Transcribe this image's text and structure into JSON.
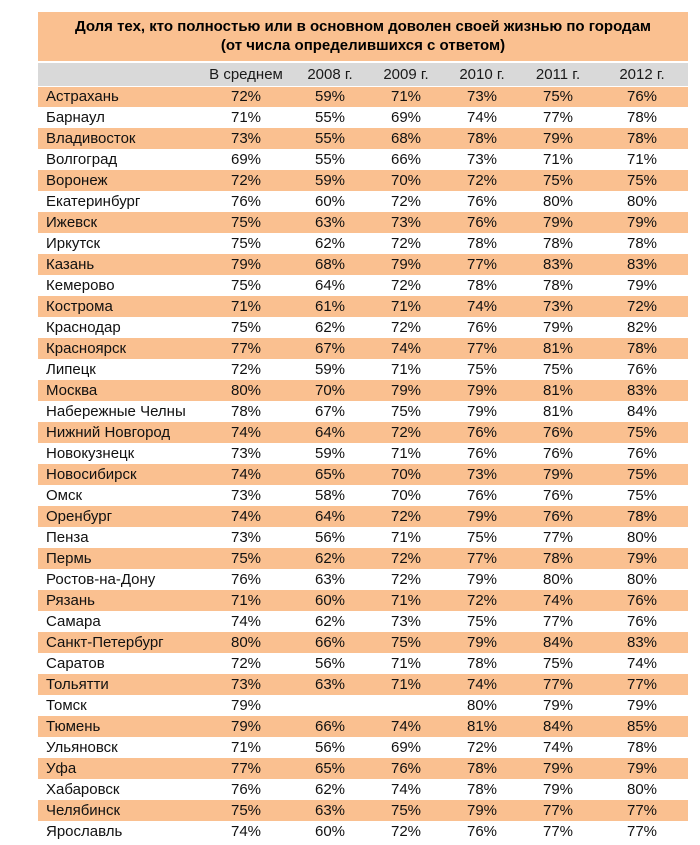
{
  "colors": {
    "accent_orange": "#FAC090",
    "header_gray": "#D9D9D9",
    "text": "#111111"
  },
  "chart_data": {
    "type": "table",
    "title": "Доля тех, кто полностью или в основном доволен своей жизнью по городам",
    "subtitle": "(от числа определившихся с ответом)",
    "columns": [
      "В среднем",
      "2008 г.",
      "2009 г.",
      "2010 г.",
      "2011 г.",
      "2012 г."
    ],
    "rows": [
      {
        "city": "Астрахань",
        "values": [
          "72%",
          "59%",
          "71%",
          "73%",
          "75%",
          "76%"
        ]
      },
      {
        "city": "Барнаул",
        "values": [
          "71%",
          "55%",
          "69%",
          "74%",
          "77%",
          "78%"
        ]
      },
      {
        "city": "Владивосток",
        "values": [
          "73%",
          "55%",
          "68%",
          "78%",
          "79%",
          "78%"
        ]
      },
      {
        "city": "Волгоград",
        "values": [
          "69%",
          "55%",
          "66%",
          "73%",
          "71%",
          "71%"
        ]
      },
      {
        "city": "Воронеж",
        "values": [
          "72%",
          "59%",
          "70%",
          "72%",
          "75%",
          "75%"
        ]
      },
      {
        "city": "Екатеринбург",
        "values": [
          "76%",
          "60%",
          "72%",
          "76%",
          "80%",
          "80%"
        ]
      },
      {
        "city": "Ижевск",
        "values": [
          "75%",
          "63%",
          "73%",
          "76%",
          "79%",
          "79%"
        ]
      },
      {
        "city": "Иркутск",
        "values": [
          "75%",
          "62%",
          "72%",
          "78%",
          "78%",
          "78%"
        ]
      },
      {
        "city": "Казань",
        "values": [
          "79%",
          "68%",
          "79%",
          "77%",
          "83%",
          "83%"
        ]
      },
      {
        "city": "Кемерово",
        "values": [
          "75%",
          "64%",
          "72%",
          "78%",
          "78%",
          "79%"
        ]
      },
      {
        "city": "Кострома",
        "values": [
          "71%",
          "61%",
          "71%",
          "74%",
          "73%",
          "72%"
        ]
      },
      {
        "city": "Краснодар",
        "values": [
          "75%",
          "62%",
          "72%",
          "76%",
          "79%",
          "82%"
        ]
      },
      {
        "city": "Красноярск",
        "values": [
          "77%",
          "67%",
          "74%",
          "77%",
          "81%",
          "78%"
        ]
      },
      {
        "city": "Липецк",
        "values": [
          "72%",
          "59%",
          "71%",
          "75%",
          "75%",
          "76%"
        ]
      },
      {
        "city": "Москва",
        "values": [
          "80%",
          "70%",
          "79%",
          "79%",
          "81%",
          "83%"
        ]
      },
      {
        "city": "Набережные Челны",
        "values": [
          "78%",
          "67%",
          "75%",
          "79%",
          "81%",
          "84%"
        ]
      },
      {
        "city": "Нижний Новгород",
        "values": [
          "74%",
          "64%",
          "72%",
          "76%",
          "76%",
          "75%"
        ]
      },
      {
        "city": "Новокузнецк",
        "values": [
          "73%",
          "59%",
          "71%",
          "76%",
          "76%",
          "76%"
        ]
      },
      {
        "city": "Новосибирск",
        "values": [
          "74%",
          "65%",
          "70%",
          "73%",
          "79%",
          "75%"
        ]
      },
      {
        "city": "Омск",
        "values": [
          "73%",
          "58%",
          "70%",
          "76%",
          "76%",
          "75%"
        ]
      },
      {
        "city": "Оренбург",
        "values": [
          "74%",
          "64%",
          "72%",
          "79%",
          "76%",
          "78%"
        ]
      },
      {
        "city": "Пенза",
        "values": [
          "73%",
          "56%",
          "71%",
          "75%",
          "77%",
          "80%"
        ]
      },
      {
        "city": "Пермь",
        "values": [
          "75%",
          "62%",
          "72%",
          "77%",
          "78%",
          "79%"
        ]
      },
      {
        "city": "Ростов-на-Дону",
        "values": [
          "76%",
          "63%",
          "72%",
          "79%",
          "80%",
          "80%"
        ]
      },
      {
        "city": "Рязань",
        "values": [
          "71%",
          "60%",
          "71%",
          "72%",
          "74%",
          "76%"
        ]
      },
      {
        "city": "Самара",
        "values": [
          "74%",
          "62%",
          "73%",
          "75%",
          "77%",
          "76%"
        ]
      },
      {
        "city": "Санкт-Петербург",
        "values": [
          "80%",
          "66%",
          "75%",
          "79%",
          "84%",
          "83%"
        ]
      },
      {
        "city": "Саратов",
        "values": [
          "72%",
          "56%",
          "71%",
          "78%",
          "75%",
          "74%"
        ]
      },
      {
        "city": "Тольятти",
        "values": [
          "73%",
          "63%",
          "71%",
          "74%",
          "77%",
          "77%"
        ]
      },
      {
        "city": "Томск",
        "values": [
          "79%",
          "",
          "",
          "80%",
          "79%",
          "79%"
        ]
      },
      {
        "city": "Тюмень",
        "values": [
          "79%",
          "66%",
          "74%",
          "81%",
          "84%",
          "85%"
        ]
      },
      {
        "city": "Ульяновск",
        "values": [
          "71%",
          "56%",
          "69%",
          "72%",
          "74%",
          "78%"
        ]
      },
      {
        "city": "Уфа",
        "values": [
          "77%",
          "65%",
          "76%",
          "78%",
          "79%",
          "79%"
        ]
      },
      {
        "city": "Хабаровск",
        "values": [
          "76%",
          "62%",
          "74%",
          "78%",
          "79%",
          "80%"
        ]
      },
      {
        "city": "Челябинск",
        "values": [
          "75%",
          "63%",
          "75%",
          "79%",
          "77%",
          "77%"
        ]
      },
      {
        "city": "Ярославль",
        "values": [
          "74%",
          "60%",
          "72%",
          "76%",
          "77%",
          "77%"
        ]
      }
    ]
  }
}
